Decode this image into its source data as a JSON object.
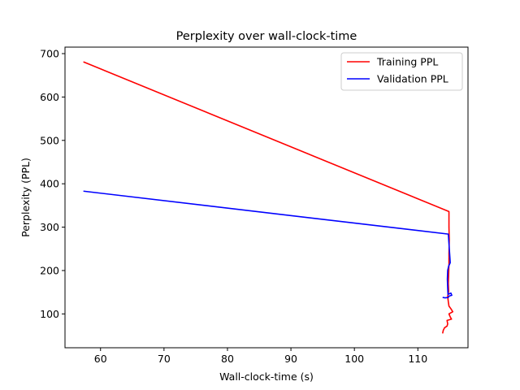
{
  "chart_data": {
    "type": "line",
    "title": "Perplexity over wall-clock-time",
    "xlabel": "Wall-clock-time (s)",
    "ylabel": "Perplexity (PPL)",
    "xlim": [
      54.4,
      117.9
    ],
    "ylim": [
      22,
      715
    ],
    "xticks": [
      60,
      70,
      80,
      90,
      100,
      110
    ],
    "yticks": [
      100,
      200,
      300,
      400,
      500,
      600,
      700
    ],
    "grid": false,
    "legend_position": "top-right",
    "series": [
      {
        "name": "Training PPL",
        "color": "#ff0000",
        "points": [
          [
            57.3,
            681
          ],
          [
            114.9,
            336
          ],
          [
            114.9,
            300
          ],
          [
            114.95,
            270
          ],
          [
            114.9,
            240
          ],
          [
            114.9,
            215
          ],
          [
            114.85,
            190
          ],
          [
            114.8,
            170
          ],
          [
            114.85,
            152
          ],
          [
            114.7,
            140
          ],
          [
            114.8,
            128
          ],
          [
            114.9,
            118
          ],
          [
            115.2,
            112
          ],
          [
            115.5,
            105
          ],
          [
            114.9,
            100
          ],
          [
            115.1,
            93
          ],
          [
            115.3,
            88
          ],
          [
            114.6,
            85
          ],
          [
            114.7,
            77
          ],
          [
            114.6,
            72
          ],
          [
            114.2,
            68
          ],
          [
            114.0,
            62
          ],
          [
            113.9,
            55
          ]
        ]
      },
      {
        "name": "Validation PPL",
        "color": "#0000ff",
        "points": [
          [
            57.3,
            383
          ],
          [
            114.8,
            284
          ],
          [
            114.9,
            262
          ],
          [
            115.0,
            240
          ],
          [
            115.1,
            218
          ],
          [
            114.85,
            210
          ],
          [
            114.7,
            200
          ],
          [
            114.65,
            180
          ],
          [
            114.7,
            160
          ],
          [
            114.75,
            145
          ],
          [
            115.2,
            148
          ],
          [
            115.35,
            143
          ],
          [
            114.9,
            141
          ],
          [
            114.8,
            138
          ],
          [
            114.3,
            137
          ],
          [
            113.9,
            138
          ]
        ]
      }
    ]
  }
}
